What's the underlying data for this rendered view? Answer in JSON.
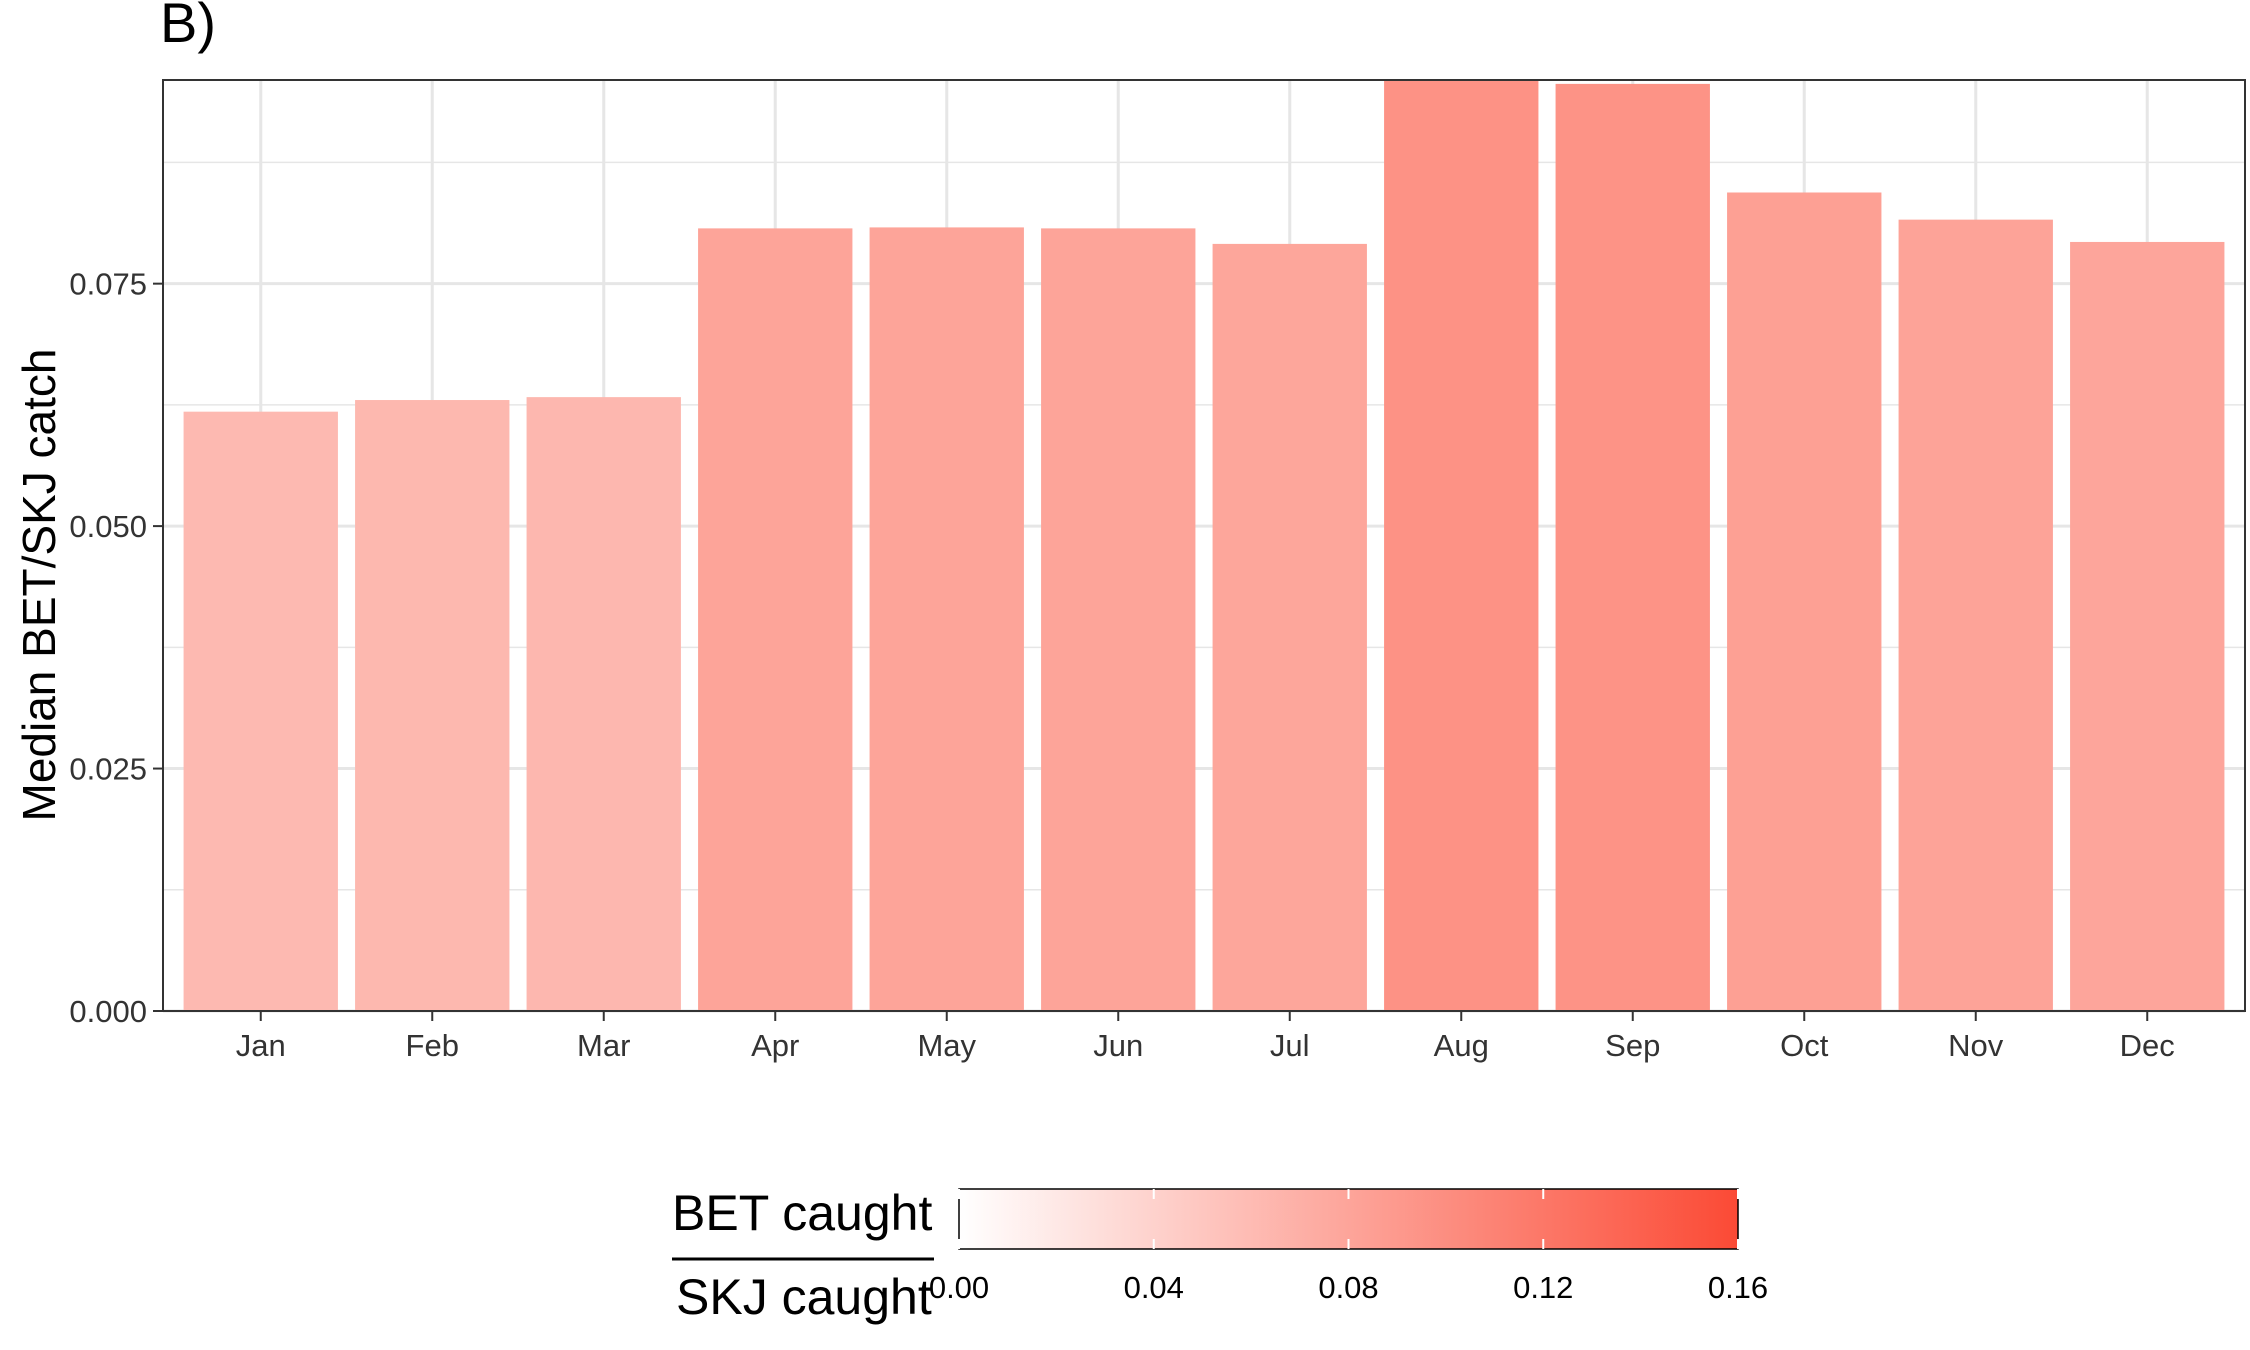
{
  "panel_label": "B)",
  "colors": {
    "low": "#ffffff",
    "high": "#fb4a35",
    "grid": "#e6e6e6",
    "panel_border": "#333333"
  },
  "chart_data": {
    "type": "bar",
    "title": "",
    "xlabel": "",
    "ylabel": "Median BET/SKJ catch",
    "categories": [
      "Jan",
      "Feb",
      "Mar",
      "Apr",
      "May",
      "Jun",
      "Jul",
      "Aug",
      "Sep",
      "Oct",
      "Nov",
      "Dec"
    ],
    "values": [
      0.0618,
      0.063,
      0.0633,
      0.0807,
      0.0808,
      0.0807,
      0.0791,
      0.0964,
      0.0956,
      0.0844,
      0.0816,
      0.0793
    ],
    "ylim": [
      0,
      0.096
    ],
    "yticks": [
      0.0,
      0.025,
      0.05,
      0.075
    ],
    "ytick_labels": [
      "0.000",
      "0.025",
      "0.050",
      "0.075"
    ],
    "grid": true,
    "legend": {
      "position": "bottom",
      "title_numerator": "BET caught",
      "title_denominator": "SKJ caught",
      "range": [
        0,
        0.16
      ],
      "ticks": [
        0.0,
        0.04,
        0.08,
        0.12,
        0.16
      ],
      "tick_labels": [
        "0.00",
        "0.04",
        "0.08",
        "0.12",
        "0.16"
      ]
    }
  }
}
